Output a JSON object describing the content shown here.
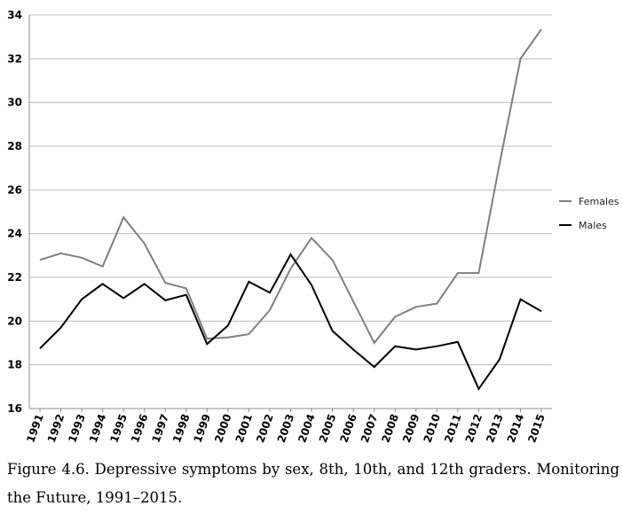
{
  "chart_data": {
    "type": "line",
    "title": "",
    "xlabel": "",
    "ylabel": "",
    "x": [
      "1991",
      "1992",
      "1993",
      "1994",
      "1995",
      "1996",
      "1997",
      "1998",
      "1999",
      "2000",
      "2001",
      "2002",
      "2003",
      "2004",
      "2005",
      "2006",
      "2007",
      "2008",
      "2009",
      "2010",
      "2011",
      "2012",
      "2013",
      "2014",
      "2015"
    ],
    "ylim": [
      16,
      34
    ],
    "yticks": [
      16,
      18,
      20,
      22,
      24,
      26,
      28,
      30,
      32,
      34
    ],
    "grid": "horizontal",
    "legend_position": "right",
    "series": [
      {
        "name": "Females",
        "color": "#7f7f7f",
        "values": [
          22.8,
          23.1,
          22.9,
          22.5,
          24.75,
          23.55,
          21.75,
          21.5,
          19.2,
          19.25,
          19.4,
          20.5,
          22.4,
          23.8,
          22.8,
          20.9,
          19.0,
          20.2,
          20.65,
          20.8,
          22.2,
          22.2,
          27.2,
          32.0,
          33.35
        ],
        "stroke_color": "#7f7f7f"
      },
      {
        "name": "Males",
        "color": "#000000",
        "values": [
          18.75,
          19.7,
          21.0,
          21.7,
          21.05,
          21.7,
          20.95,
          21.2,
          18.95,
          19.8,
          21.8,
          21.3,
          23.05,
          21.65,
          19.55,
          18.7,
          17.9,
          18.85,
          18.7,
          18.85,
          19.05,
          16.9,
          18.25,
          21.0,
          20.45
        ],
        "stroke_color": "#000000"
      }
    ],
    "caption": "Figure 4.6. Depressive symptoms by sex, 8th, 10th, and 12th graders. Monitoring the Future, 1991–2015."
  }
}
